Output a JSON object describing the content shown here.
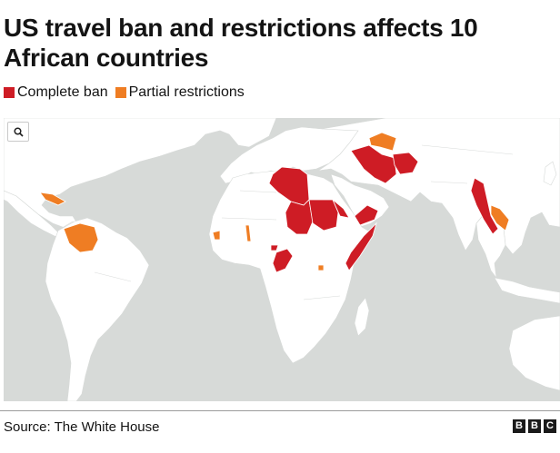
{
  "title": "US travel ban and restrictions affects 10 African countries",
  "legend": {
    "complete": {
      "label": "Complete ban",
      "color": "#ce1c25"
    },
    "partial": {
      "label": "Partial restrictions",
      "color": "#ef7d23"
    }
  },
  "map": {
    "background_color": "#d7dad8",
    "land_color": "#ffffff",
    "search_icon": "magnifier-icon"
  },
  "source": "Source: The White House",
  "logo": [
    "B",
    "B",
    "C"
  ]
}
